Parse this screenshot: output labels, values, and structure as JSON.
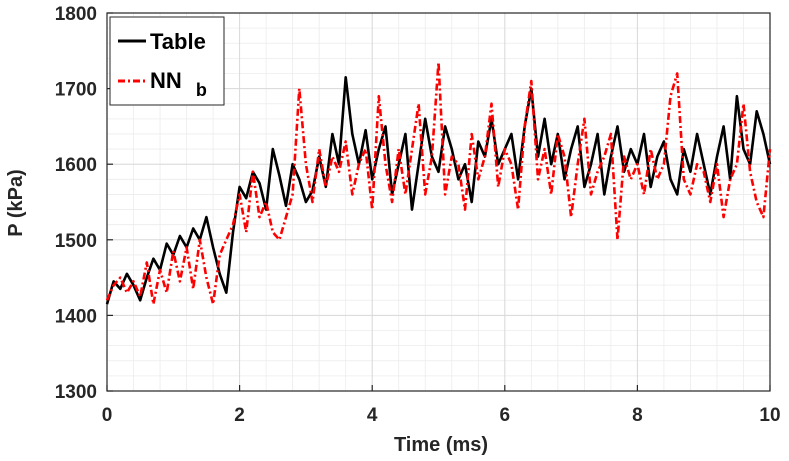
{
  "chart_data": {
    "type": "line",
    "title": "",
    "xlabel": "Time (ms)",
    "ylabel": "P (kPa)",
    "xlim": [
      0,
      10
    ],
    "ylim": [
      1300,
      1800
    ],
    "xticks": [
      0,
      2,
      4,
      6,
      8,
      10
    ],
    "yticks": [
      1300,
      1400,
      1500,
      1600,
      1700,
      1800
    ],
    "xtick_labels": [
      "0",
      "2",
      "4",
      "6",
      "8",
      "10"
    ],
    "ytick_labels": [
      "1300",
      "1400",
      "1500",
      "1600",
      "1700",
      "1800"
    ],
    "grid": "on (major and minor)",
    "legend_position": "top-left",
    "series": [
      {
        "name": "Table",
        "color": "#000000",
        "style": "solid",
        "x": [
          0.0,
          0.1,
          0.2,
          0.3,
          0.4,
          0.5,
          0.6,
          0.7,
          0.8,
          0.9,
          1.0,
          1.1,
          1.2,
          1.3,
          1.4,
          1.5,
          1.6,
          1.7,
          1.8,
          1.9,
          2.0,
          2.1,
          2.2,
          2.3,
          2.4,
          2.5,
          2.6,
          2.7,
          2.8,
          2.9,
          3.0,
          3.1,
          3.2,
          3.3,
          3.4,
          3.5,
          3.6,
          3.7,
          3.8,
          3.9,
          4.0,
          4.1,
          4.2,
          4.3,
          4.4,
          4.5,
          4.6,
          4.7,
          4.8,
          4.9,
          5.0,
          5.1,
          5.2,
          5.3,
          5.4,
          5.5,
          5.6,
          5.7,
          5.8,
          5.9,
          6.0,
          6.1,
          6.2,
          6.3,
          6.4,
          6.5,
          6.6,
          6.7,
          6.8,
          6.9,
          7.0,
          7.1,
          7.2,
          7.3,
          7.4,
          7.5,
          7.6,
          7.7,
          7.8,
          7.9,
          8.0,
          8.1,
          8.2,
          8.3,
          8.4,
          8.5,
          8.6,
          8.7,
          8.8,
          8.9,
          9.0,
          9.1,
          9.2,
          9.3,
          9.4,
          9.5,
          9.6,
          9.7,
          9.8,
          9.9,
          10.0
        ],
        "values": [
          1415,
          1445,
          1435,
          1455,
          1440,
          1420,
          1450,
          1475,
          1460,
          1495,
          1480,
          1505,
          1490,
          1515,
          1500,
          1530,
          1490,
          1455,
          1430,
          1510,
          1570,
          1555,
          1590,
          1575,
          1540,
          1620,
          1585,
          1545,
          1600,
          1580,
          1550,
          1565,
          1610,
          1570,
          1640,
          1600,
          1715,
          1640,
          1600,
          1645,
          1580,
          1620,
          1650,
          1560,
          1600,
          1640,
          1540,
          1600,
          1660,
          1610,
          1590,
          1650,
          1620,
          1580,
          1600,
          1550,
          1630,
          1610,
          1660,
          1600,
          1620,
          1640,
          1580,
          1650,
          1700,
          1610,
          1660,
          1600,
          1640,
          1580,
          1620,
          1650,
          1570,
          1600,
          1640,
          1560,
          1610,
          1650,
          1590,
          1620,
          1600,
          1640,
          1570,
          1610,
          1630,
          1580,
          1560,
          1620,
          1590,
          1640,
          1600,
          1560,
          1610,
          1650,
          1580,
          1690,
          1620,
          1600,
          1670,
          1640,
          1600
        ]
      },
      {
        "name": "NN",
        "name_subscript": "b",
        "color": "#ff0000",
        "style": "dash-dot",
        "x": [
          0.0,
          0.1,
          0.2,
          0.3,
          0.4,
          0.5,
          0.6,
          0.7,
          0.8,
          0.9,
          1.0,
          1.1,
          1.2,
          1.3,
          1.4,
          1.5,
          1.6,
          1.7,
          1.8,
          1.9,
          2.0,
          2.1,
          2.2,
          2.3,
          2.4,
          2.5,
          2.6,
          2.7,
          2.8,
          2.9,
          3.0,
          3.1,
          3.2,
          3.3,
          3.4,
          3.5,
          3.6,
          3.7,
          3.8,
          3.9,
          4.0,
          4.1,
          4.2,
          4.3,
          4.4,
          4.5,
          4.6,
          4.7,
          4.8,
          4.9,
          5.0,
          5.1,
          5.2,
          5.3,
          5.4,
          5.5,
          5.6,
          5.7,
          5.8,
          5.9,
          6.0,
          6.1,
          6.2,
          6.3,
          6.4,
          6.5,
          6.6,
          6.7,
          6.8,
          6.9,
          7.0,
          7.1,
          7.2,
          7.3,
          7.4,
          7.5,
          7.6,
          7.7,
          7.8,
          7.9,
          8.0,
          8.1,
          8.2,
          8.3,
          8.4,
          8.5,
          8.6,
          8.7,
          8.8,
          8.9,
          9.0,
          9.1,
          9.2,
          9.3,
          9.4,
          9.5,
          9.6,
          9.7,
          9.8,
          9.9,
          10.0
        ],
        "values": [
          1420,
          1440,
          1450,
          1430,
          1445,
          1425,
          1470,
          1415,
          1460,
          1430,
          1485,
          1445,
          1490,
          1435,
          1500,
          1450,
          1415,
          1480,
          1500,
          1520,
          1560,
          1510,
          1590,
          1530,
          1550,
          1510,
          1500,
          1530,
          1560,
          1700,
          1600,
          1550,
          1620,
          1570,
          1610,
          1590,
          1630,
          1560,
          1600,
          1620,
          1540,
          1690,
          1600,
          1550,
          1620,
          1560,
          1620,
          1680,
          1560,
          1610,
          1735,
          1560,
          1610,
          1600,
          1540,
          1640,
          1580,
          1610,
          1680,
          1570,
          1620,
          1600,
          1540,
          1650,
          1710,
          1580,
          1620,
          1560,
          1640,
          1610,
          1530,
          1600,
          1660,
          1560,
          1590,
          1610,
          1640,
          1500,
          1610,
          1580,
          1600,
          1560,
          1620,
          1580,
          1600,
          1690,
          1720,
          1580,
          1560,
          1600,
          1590,
          1550,
          1600,
          1530,
          1580,
          1600,
          1680,
          1590,
          1550,
          1530,
          1620
        ]
      }
    ]
  }
}
